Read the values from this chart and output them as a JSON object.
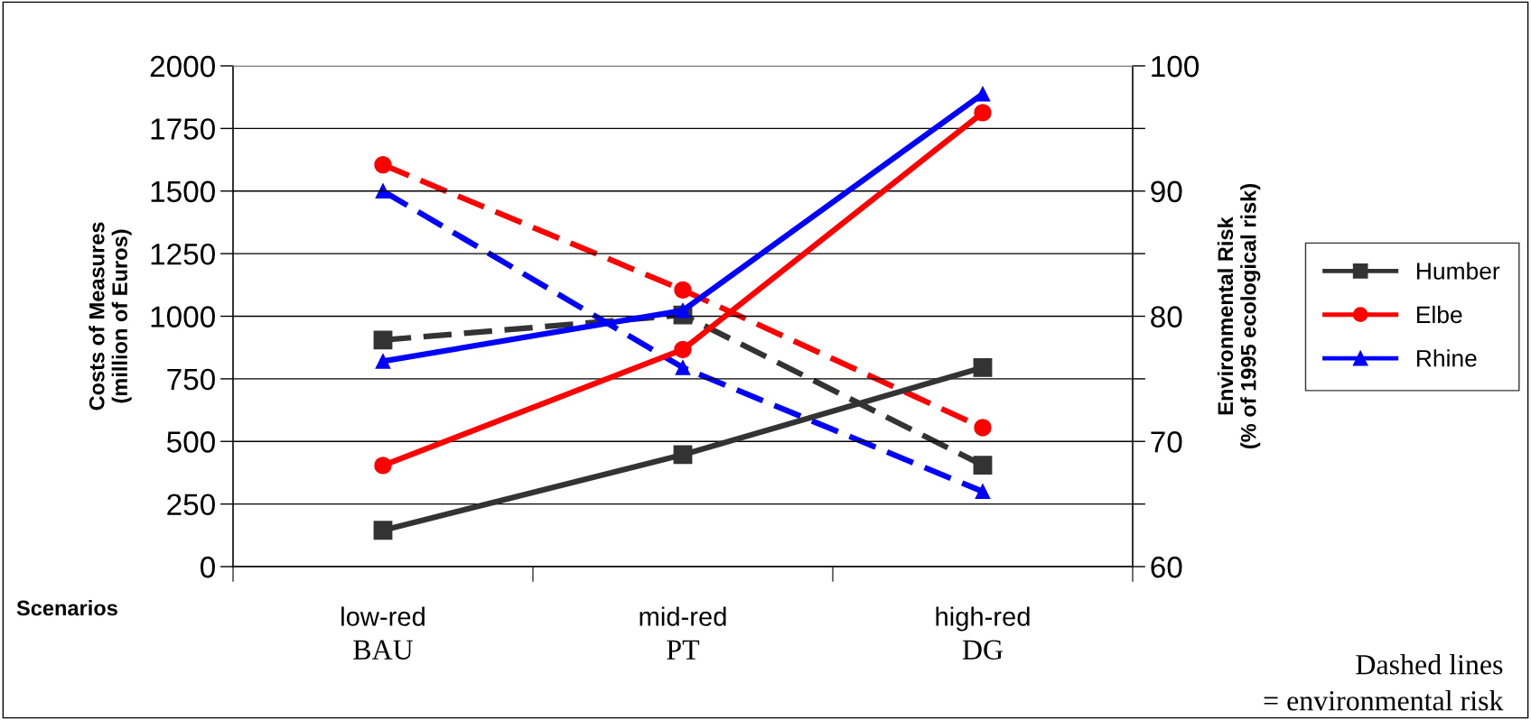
{
  "chart_data": {
    "type": "line",
    "categories": [
      "low-red\nBAU",
      "mid-red\nPT",
      "high-red\nDG"
    ],
    "xlabel": "Scenarios",
    "ylabel": "Costs of Measures\n(million of Euros)",
    "y2label": "Environmental Risk\n(% of 1995 ecological risk)",
    "ylim": [
      0,
      2000
    ],
    "yticks": [
      0,
      250,
      500,
      750,
      1000,
      1250,
      1500,
      1750,
      2000
    ],
    "y2lim": [
      60,
      100
    ],
    "y2ticks": [
      60,
      {
        "value": 65,
        "label": null
      },
      70,
      {
        "value": 75,
        "label": null
      },
      80,
      {
        "value": 85,
        "label": null
      },
      90,
      {
        "value": 95,
        "label": null
      },
      100
    ],
    "grid": "y",
    "legend": "right",
    "series": [
      {
        "name": "Humber",
        "color": "#333333",
        "marker": "square",
        "line_style": "solid",
        "values": [
          145,
          447,
          795
        ]
      },
      {
        "name": "Elbe",
        "color": "#ff0000",
        "marker": "circle",
        "line_style": "solid",
        "values": [
          404,
          867,
          1813
        ]
      },
      {
        "name": "Rhine",
        "color": "#0000ff",
        "marker": "triangle",
        "line_style": "solid",
        "values": [
          820,
          1023,
          1888
        ]
      },
      {
        "color": "#333333",
        "marker": "square",
        "line_style": "dashed",
        "axis": "y2",
        "values": [
          78.1,
          80.1,
          68.1
        ]
      },
      {
        "color": "#ff0000",
        "marker": "circle",
        "line_style": "dashed",
        "axis": "y2",
        "values": [
          92.1,
          82.1,
          71.1
        ]
      },
      {
        "color": "#0000ff",
        "marker": "triangle",
        "line_style": "dashed",
        "axis": "y2",
        "values": [
          90.0,
          75.9,
          66.0
        ]
      }
    ],
    "annotations": [
      "Dashed lines\n= environmental risk"
    ]
  }
}
